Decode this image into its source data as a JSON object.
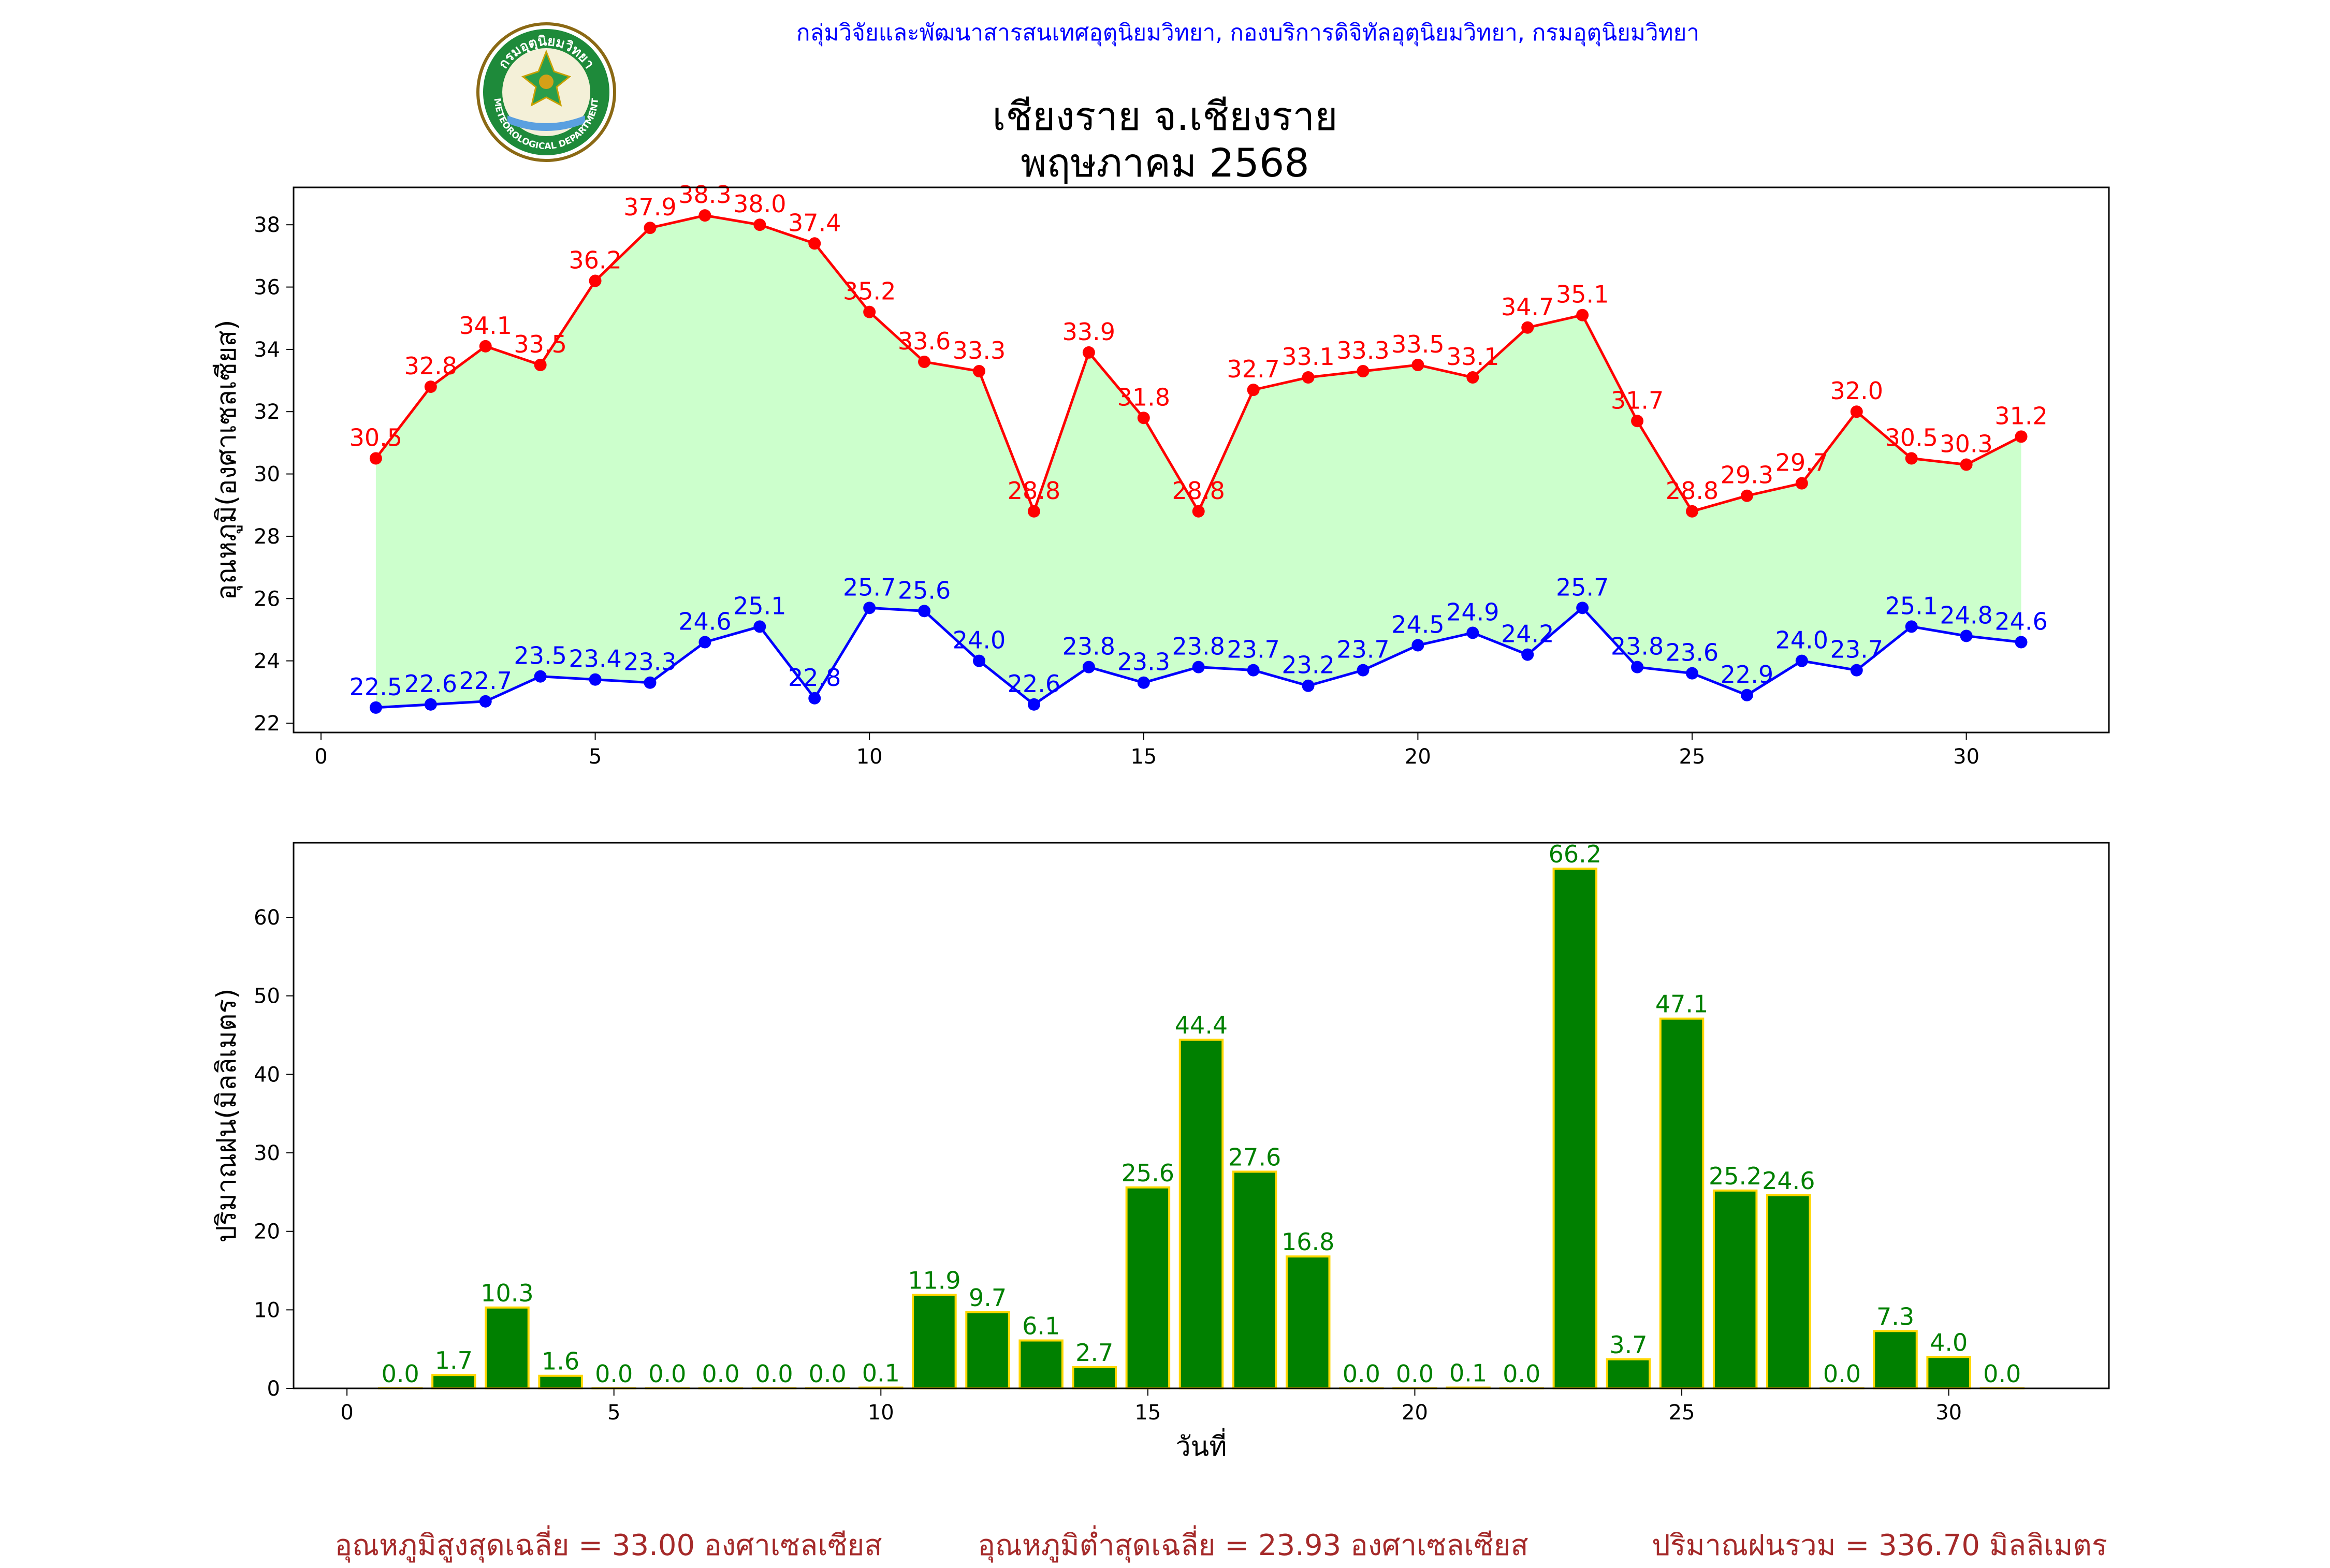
{
  "header": {
    "organization": "กลุ่มวิจัยและพัฒนาสารสนเทศอุตุนิยมวิทยา, กองบริการดิจิทัลอุตุนิยมวิทยา, กรมอุตุนิยมวิทยา",
    "title_line1": "เชียงราย จ.เชียงราย",
    "title_line2": "พฤษภาคม 2568",
    "logo_text": "กรมอุตุนิยมวิทยา",
    "logo_text_en": "METEOROLOGICAL DEPARTMENT"
  },
  "footer": {
    "avg_max": "อุณหภูมิสูงสุดเฉลี่ย = 33.00 องศาเซลเซียส",
    "avg_min": "อุณหภูมิต่ำสุดเฉลี่ย = 23.93 องศาเซลเซียส",
    "total_rain": "ปริมาณฝนรวม = 336.70 มิลลิเมตร"
  },
  "colors": {
    "tmax": "#ff0000",
    "tmin": "#0000ff",
    "fill": "#ccffcc",
    "rain_bar": "#008000",
    "rain_edge": "#ffd700",
    "rain_label": "#008000",
    "footer": "#a52a2a"
  },
  "chart_data": [
    {
      "type": "line",
      "ylabel": "อุณหภูมิ(องศาเซลเซียส)",
      "xlim": [
        -0.5,
        32.6
      ],
      "ylim": [
        21.7,
        39.2
      ],
      "xticks": [
        0,
        5,
        10,
        15,
        20,
        25,
        30
      ],
      "yticks": [
        22,
        24,
        26,
        28,
        30,
        32,
        34,
        36,
        38
      ],
      "grid": false,
      "x": [
        1,
        2,
        3,
        4,
        5,
        6,
        7,
        8,
        9,
        10,
        11,
        12,
        13,
        14,
        15,
        16,
        17,
        18,
        19,
        20,
        21,
        22,
        23,
        24,
        25,
        26,
        27,
        28,
        29,
        30,
        31
      ],
      "series": [
        {
          "values": [
            30.5,
            32.8,
            34.1,
            33.5,
            36.2,
            37.9,
            38.3,
            38.0,
            37.4,
            35.2,
            33.6,
            33.3,
            28.8,
            33.9,
            31.8,
            28.8,
            32.7,
            33.1,
            33.3,
            33.5,
            33.1,
            34.7,
            35.1,
            31.7,
            28.8,
            29.3,
            29.7,
            32.0,
            30.5,
            30.3,
            31.2
          ]
        },
        {
          "values": [
            22.5,
            22.6,
            22.7,
            23.5,
            23.4,
            23.3,
            24.6,
            25.1,
            22.8,
            25.7,
            25.6,
            24.0,
            22.6,
            23.8,
            23.3,
            23.8,
            23.7,
            23.2,
            23.7,
            24.5,
            24.9,
            24.2,
            25.7,
            23.8,
            23.6,
            22.9,
            24.0,
            23.7,
            25.1,
            24.8,
            24.6
          ]
        }
      ]
    },
    {
      "type": "bar",
      "xlabel": "วันที่",
      "ylabel": "ปริมาณฝน(มิลลิเมตร)",
      "xlim": [
        -1,
        33
      ],
      "ylim": [
        0,
        69.5
      ],
      "xticks": [
        0,
        5,
        10,
        15,
        20,
        25,
        30
      ],
      "yticks": [
        0,
        10,
        20,
        30,
        40,
        50,
        60
      ],
      "grid": false,
      "x": [
        1,
        2,
        3,
        4,
        5,
        6,
        7,
        8,
        9,
        10,
        11,
        12,
        13,
        14,
        15,
        16,
        17,
        18,
        19,
        20,
        21,
        22,
        23,
        24,
        25,
        26,
        27,
        28,
        29,
        30,
        31
      ],
      "values": [
        0.0,
        1.7,
        10.3,
        1.6,
        0.0,
        0.0,
        0.0,
        0.0,
        0.0,
        0.1,
        11.9,
        9.7,
        6.1,
        2.7,
        25.6,
        44.4,
        27.6,
        16.8,
        0.0,
        0.0,
        0.1,
        0.0,
        66.2,
        3.7,
        47.1,
        25.2,
        24.6,
        0.0,
        7.3,
        4.0,
        0.0
      ]
    }
  ]
}
